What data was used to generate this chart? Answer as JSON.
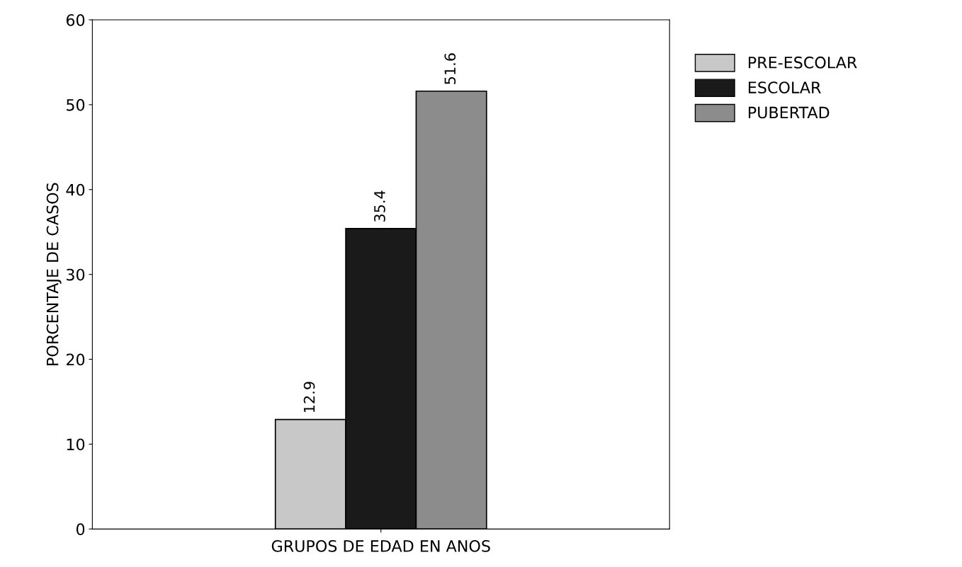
{
  "chart_data": {
    "type": "bar",
    "categories": [
      null
    ],
    "series": [
      {
        "name": "PRE-ESCOLAR",
        "color": "#c8c8c8",
        "values": [
          12.9
        ]
      },
      {
        "name": "ESCOLAR",
        "color": "#1a1a1a",
        "values": [
          35.4
        ]
      },
      {
        "name": "PUBERTAD",
        "color": "#8c8c8c",
        "values": [
          51.6
        ]
      }
    ],
    "xlabel": "GRUPOS DE EDAD EN ANOS",
    "ylabel": "PORCENTAJE DE CASOS",
    "ylim": [
      0,
      60
    ],
    "yticks": [
      0,
      10,
      20,
      30,
      40,
      50,
      60
    ],
    "data_labels": true,
    "grid": false,
    "legend": "top right"
  }
}
